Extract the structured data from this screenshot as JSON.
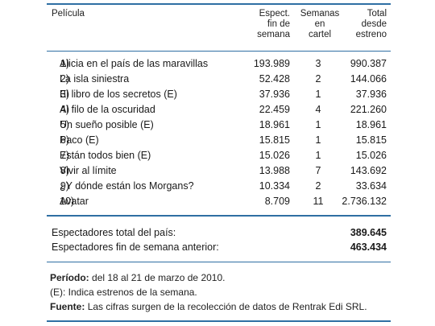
{
  "header": {
    "col_title": "Película",
    "col_fin": [
      "Espect.",
      "fin de",
      "semana"
    ],
    "col_sem": [
      "Semanas",
      "en",
      "cartel"
    ],
    "col_tot": [
      "Total",
      "desde",
      "estreno"
    ]
  },
  "rows": [
    {
      "n": "1)",
      "title": "Alicia en el país de las maravillas",
      "fin": "193.989",
      "sem": "3",
      "tot": "990.387"
    },
    {
      "n": "2)",
      "title": "La isla siniestra",
      "fin": "52.428",
      "sem": "2",
      "tot": "144.066"
    },
    {
      "n": "3)",
      "title": "El libro de los secretos (E)",
      "fin": "37.936",
      "sem": "1",
      "tot": "37.936"
    },
    {
      "n": "4)",
      "title": "Al filo de la oscuridad",
      "fin": "22.459",
      "sem": "4",
      "tot": "221.260"
    },
    {
      "n": "5)",
      "title": "Un sueño posible (E)",
      "fin": "18.961",
      "sem": "1",
      "tot": "18.961"
    },
    {
      "n": "6)",
      "title": "Paco (E)",
      "fin": "15.815",
      "sem": "1",
      "tot": "15.815"
    },
    {
      "n": "7)",
      "title": "Están todos bien (E)",
      "fin": "15.026",
      "sem": "1",
      "tot": "15.026"
    },
    {
      "n": "8)",
      "title": "Vivir al límite",
      "fin": "13.988",
      "sem": "7",
      "tot": "143.692"
    },
    {
      "n": "9)",
      "title": "¿Y dónde están los Morgans?",
      "fin": "10.334",
      "sem": "2",
      "tot": "33.634"
    },
    {
      "n": "10)",
      "title": "Avatar",
      "fin": "8.709",
      "sem": "11",
      "tot": "2.736.132"
    }
  ],
  "summary": [
    {
      "label": "Espectadores total del país:",
      "value": "389.645"
    },
    {
      "label": "Espectadores fin de semana anterior:",
      "value": "463.434"
    }
  ],
  "notes": {
    "periodo_label": "Período:",
    "periodo_text": "del 18 al 21 de marzo de 2010.",
    "estreno_text": "(E): Indica estrenos de la semana.",
    "fuente_label": "Fuente:",
    "fuente_text": "Las cifras surgen de la recolección de datos de Rentrak Edi SRL."
  }
}
